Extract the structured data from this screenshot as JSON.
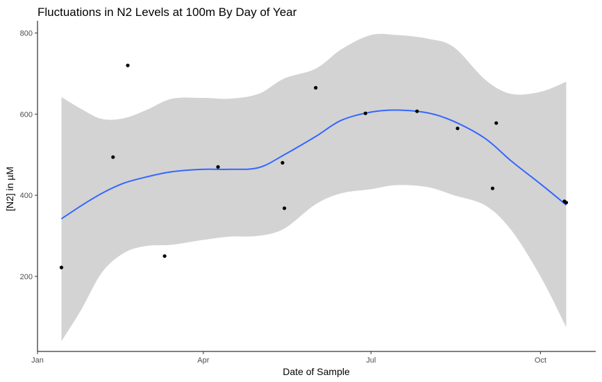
{
  "chart_data": {
    "type": "scatter",
    "title": "Fluctuations in N2 Levels at 100m By Day of Year",
    "xlabel": "Date of Sample",
    "ylabel": "[N2] in µM",
    "x_axis": {
      "type": "date",
      "range": [
        "2021-01-01",
        "2021-10-31"
      ],
      "ticks": [
        {
          "value": "2021-01-01",
          "label": "Jan"
        },
        {
          "value": "2021-04-01",
          "label": "Apr"
        },
        {
          "value": "2021-07-01",
          "label": "Jul"
        },
        {
          "value": "2021-10-01",
          "label": "Oct"
        }
      ]
    },
    "y_axis": {
      "range": [
        15,
        830
      ],
      "ticks": [
        200,
        400,
        600,
        800
      ]
    },
    "grid": false,
    "points": [
      {
        "x": "2021-01-14",
        "y": 222
      },
      {
        "x": "2021-02-11",
        "y": 494
      },
      {
        "x": "2021-02-19",
        "y": 720
      },
      {
        "x": "2021-03-11",
        "y": 250
      },
      {
        "x": "2021-04-09",
        "y": 470
      },
      {
        "x": "2021-05-14",
        "y": 480
      },
      {
        "x": "2021-05-15",
        "y": 368
      },
      {
        "x": "2021-06-01",
        "y": 665
      },
      {
        "x": "2021-06-28",
        "y": 602
      },
      {
        "x": "2021-07-26",
        "y": 607
      },
      {
        "x": "2021-08-17",
        "y": 565
      },
      {
        "x": "2021-09-05",
        "y": 417
      },
      {
        "x": "2021-09-07",
        "y": 578
      },
      {
        "x": "2021-10-14",
        "y": 385
      },
      {
        "x": "2021-10-15",
        "y": 382
      }
    ],
    "smooth": {
      "method": "loess",
      "color": "#3366FF",
      "band_color": "#D3D3D3",
      "fit": [
        {
          "x": "2021-01-14",
          "y": 342,
          "lower": 40,
          "upper": 642
        },
        {
          "x": "2021-01-25",
          "y": 375,
          "lower": 120,
          "upper": 612
        },
        {
          "x": "2021-02-05",
          "y": 405,
          "lower": 210,
          "upper": 588
        },
        {
          "x": "2021-02-17",
          "y": 430,
          "lower": 258,
          "upper": 590
        },
        {
          "x": "2021-03-01",
          "y": 445,
          "lower": 275,
          "upper": 610
        },
        {
          "x": "2021-03-15",
          "y": 458,
          "lower": 278,
          "upper": 638
        },
        {
          "x": "2021-04-01",
          "y": 464,
          "lower": 290,
          "upper": 640
        },
        {
          "x": "2021-04-15",
          "y": 464,
          "lower": 298,
          "upper": 638
        },
        {
          "x": "2021-05-01",
          "y": 468,
          "lower": 300,
          "upper": 650
        },
        {
          "x": "2021-05-15",
          "y": 500,
          "lower": 318,
          "upper": 688
        },
        {
          "x": "2021-06-01",
          "y": 545,
          "lower": 378,
          "upper": 712
        },
        {
          "x": "2021-06-15",
          "y": 585,
          "lower": 405,
          "upper": 760
        },
        {
          "x": "2021-07-01",
          "y": 605,
          "lower": 415,
          "upper": 795
        },
        {
          "x": "2021-07-15",
          "y": 610,
          "lower": 425,
          "upper": 795
        },
        {
          "x": "2021-08-01",
          "y": 603,
          "lower": 420,
          "upper": 786
        },
        {
          "x": "2021-08-15",
          "y": 582,
          "lower": 400,
          "upper": 765
        },
        {
          "x": "2021-09-01",
          "y": 540,
          "lower": 375,
          "upper": 685
        },
        {
          "x": "2021-09-15",
          "y": 485,
          "lower": 315,
          "upper": 650
        },
        {
          "x": "2021-10-01",
          "y": 428,
          "lower": 200,
          "upper": 655
        },
        {
          "x": "2021-10-15",
          "y": 376,
          "lower": 75,
          "upper": 680
        }
      ]
    }
  }
}
